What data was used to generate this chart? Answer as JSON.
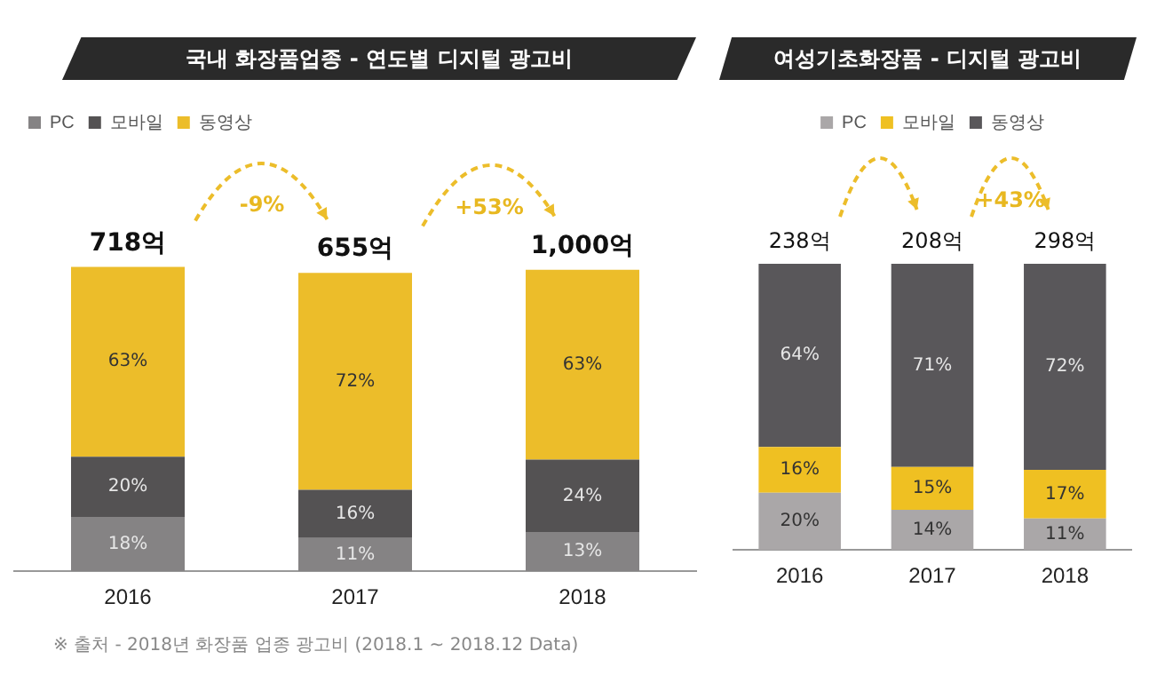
{
  "chart_data": [
    {
      "type": "bar",
      "title": "국내 화장품업종 - 연도별 디지털 광고비",
      "categories": [
        "2016",
        "2017",
        "2018"
      ],
      "stacked": true,
      "tick_labels": "x",
      "legend": "top left",
      "grid": false,
      "series": [
        {
          "name": "PC",
          "color": "#858384",
          "values": [
            18,
            11,
            13
          ],
          "value_labels": [
            "18%",
            "11%",
            "13%"
          ]
        },
        {
          "name": "모바일",
          "color": "#545253",
          "values": [
            20,
            16,
            24
          ],
          "value_labels": [
            "20%",
            "16%",
            "24%"
          ]
        },
        {
          "name": "동영상",
          "color": "#ecbd2a",
          "values": [
            63,
            72,
            63
          ],
          "value_labels": [
            "63%",
            "72%",
            "63%"
          ]
        }
      ],
      "annotations": [
        {
          "text": "718억",
          "x": "2016",
          "y": 101
        },
        {
          "text": "655억",
          "x": "2017",
          "y": 99
        },
        {
          "text": "1,000억",
          "x": "2018",
          "y": 100
        },
        "-9%",
        "+53%",
        "※ 출처 - 2018년 화장품 업종 광고비 (2018.1 ~ 2018.12 Data)"
      ]
    },
    {
      "type": "bar",
      "title": "여성기초화장품 - 디지털 광고비",
      "categories": [
        "2016",
        "2017",
        "2018"
      ],
      "stacked": true,
      "tick_labels": "x",
      "legend": "top",
      "grid": false,
      "series": [
        {
          "name": "PC",
          "color": "#aaa7a8",
          "values": [
            20,
            14,
            11
          ],
          "value_labels": [
            "20%",
            "14%",
            "11%"
          ]
        },
        {
          "name": "모바일",
          "color": "#efc022",
          "values": [
            16,
            15,
            17
          ],
          "value_labels": [
            "16%",
            "15%",
            "17%"
          ]
        },
        {
          "name": "동영상",
          "color": "#59575a",
          "values": [
            64,
            71,
            72
          ],
          "value_labels": [
            "64%",
            "71%",
            "72%"
          ]
        }
      ],
      "annotations": [
        {
          "text": "238억",
          "x": "2016",
          "y": 100
        },
        {
          "text": "208억",
          "x": "2017",
          "y": 100
        },
        {
          "text": "298억",
          "x": "2018",
          "y": 100
        },
        "+43%"
      ]
    }
  ]
}
